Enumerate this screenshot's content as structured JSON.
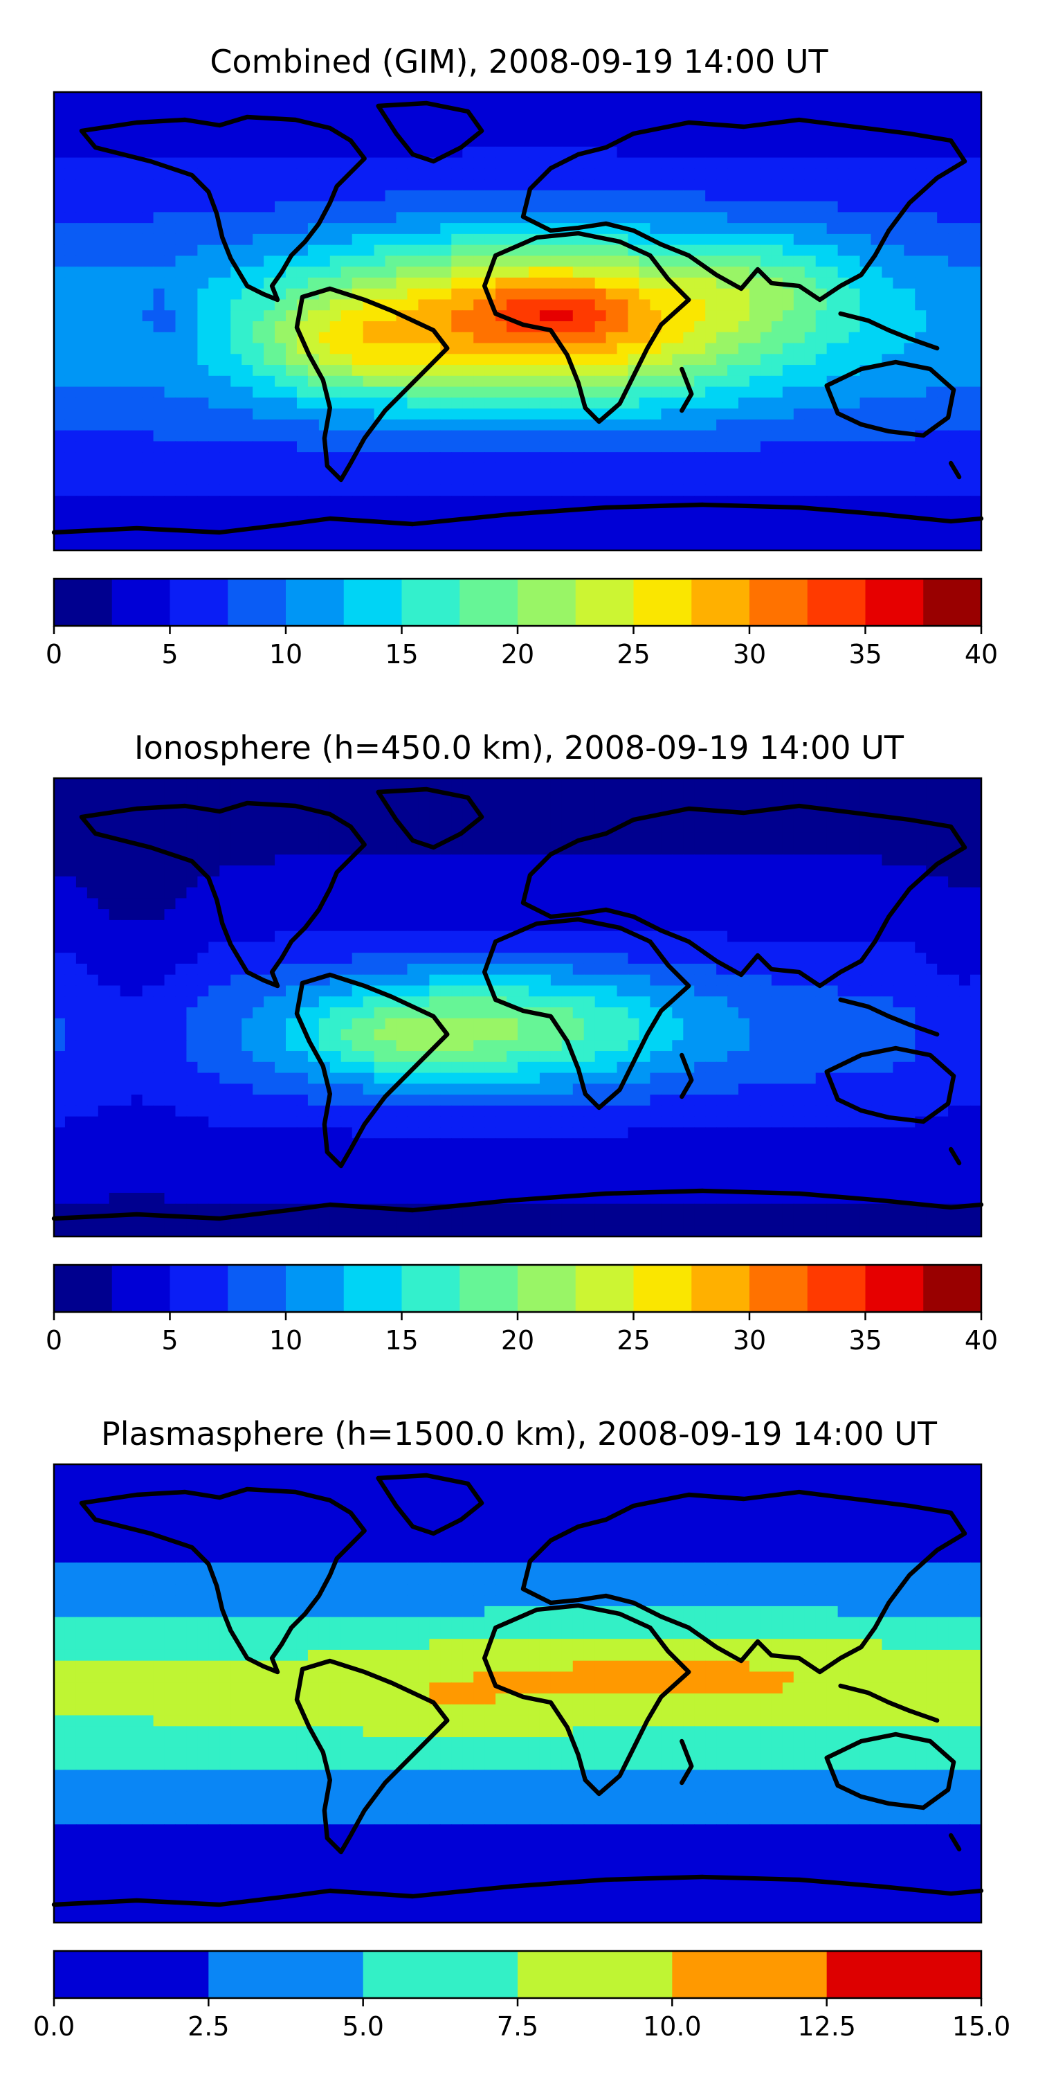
{
  "figure": {
    "panels": [
      {
        "title": "Combined (GIM), 2008-09-19 14:00 UT",
        "field": "combined",
        "levels": [
          0,
          2.5,
          5,
          7.5,
          10,
          12.5,
          15,
          17.5,
          20,
          22.5,
          25,
          27.5,
          30,
          32.5,
          35,
          37.5,
          40
        ],
        "colors": [
          "#00008f",
          "#0000d6",
          "#0a1ef5",
          "#0a5cf5",
          "#0096f5",
          "#00d4f5",
          "#33f0cc",
          "#66f596",
          "#99f566",
          "#ccf533",
          "#fae600",
          "#ffb000",
          "#ff7200",
          "#ff3a00",
          "#e60000",
          "#990000"
        ],
        "ticks": [
          0,
          5,
          10,
          15,
          20,
          25,
          30,
          35,
          40
        ],
        "tick_labels": [
          "0",
          "5",
          "10",
          "15",
          "20",
          "25",
          "30",
          "35",
          "40"
        ]
      },
      {
        "title": "Ionosphere  (h=450.0 km), 2008-09-19 14:00 UT",
        "field": "ionosphere",
        "levels": [
          0,
          2.5,
          5,
          7.5,
          10,
          12.5,
          15,
          17.5,
          20,
          22.5,
          25,
          27.5,
          30,
          32.5,
          35,
          37.5,
          40
        ],
        "colors": [
          "#00008f",
          "#0000d6",
          "#0a1ef5",
          "#0a5cf5",
          "#0096f5",
          "#00d4f5",
          "#33f0cc",
          "#66f596",
          "#99f566",
          "#ccf533",
          "#fae600",
          "#ffb000",
          "#ff7200",
          "#ff3a00",
          "#e60000",
          "#990000"
        ],
        "ticks": [
          0,
          5,
          10,
          15,
          20,
          25,
          30,
          35,
          40
        ],
        "tick_labels": [
          "0",
          "5",
          "10",
          "15",
          "20",
          "25",
          "30",
          "35",
          "40"
        ]
      },
      {
        "title": "Plasmasphere (h=1500.0 km), 2008-09-19 14:00 UT",
        "field": "plasmasphere",
        "levels": [
          0,
          2.5,
          5,
          7.5,
          10,
          12.5,
          15
        ],
        "colors": [
          "#0000d6",
          "#0a86f5",
          "#33f0c6",
          "#bff533",
          "#ff9900",
          "#dd0000"
        ],
        "ticks": [
          0,
          2.5,
          5,
          7.5,
          10,
          12.5,
          15
        ],
        "tick_labels": [
          "0.0",
          "2.5",
          "5.0",
          "7.5",
          "10.0",
          "12.5",
          "15.0"
        ]
      }
    ]
  }
}
